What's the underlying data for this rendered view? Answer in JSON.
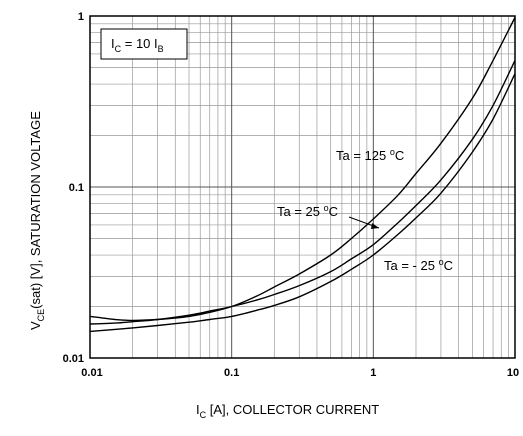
{
  "chart_data": {
    "type": "line",
    "title": "",
    "xlabel": {
      "main": "I",
      "sub": "C",
      "rest": " [A], COLLECTOR CURRENT"
    },
    "ylabel": {
      "main": "V",
      "sub": "CE",
      "rest": "(sat) [V], SATURATION VOLTAGE"
    },
    "x_scale": "log",
    "y_scale": "log",
    "xlim": [
      0.01,
      10
    ],
    "ylim": [
      0.01,
      1
    ],
    "grid": true,
    "x_ticks": [
      {
        "value": 0.01,
        "label": "0.01"
      },
      {
        "value": 0.1,
        "label": "0.1"
      },
      {
        "value": 1,
        "label": "1"
      },
      {
        "value": 10,
        "label": "10"
      }
    ],
    "y_ticks": [
      {
        "value": 0.01,
        "label": "0.01"
      },
      {
        "value": 0.1,
        "label": "0.1"
      },
      {
        "value": 1,
        "label": "1"
      }
    ],
    "condition_box": {
      "main": "I",
      "sub": "C",
      "mid": " = 10 I",
      "sub2": "B"
    },
    "series": [
      {
        "name": "Ta = 125 °C",
        "label_parts": {
          "pre": "Ta = 125 ",
          "sup": "o",
          "post": "C"
        },
        "x": [
          0.01,
          0.015,
          0.02,
          0.03,
          0.05,
          0.07,
          0.1,
          0.15,
          0.2,
          0.3,
          0.5,
          0.7,
          1,
          1.5,
          2,
          3,
          5,
          7,
          10
        ],
        "y": [
          0.0175,
          0.0168,
          0.0166,
          0.0168,
          0.0175,
          0.0185,
          0.02,
          0.023,
          0.026,
          0.031,
          0.04,
          0.05,
          0.065,
          0.09,
          0.12,
          0.18,
          0.33,
          0.55,
          0.98
        ]
      },
      {
        "name": "Ta = 25 °C",
        "label_parts": {
          "pre": "Ta = 25 ",
          "sup": "o",
          "post": "C"
        },
        "x": [
          0.01,
          0.015,
          0.02,
          0.03,
          0.05,
          0.07,
          0.1,
          0.15,
          0.2,
          0.3,
          0.5,
          0.7,
          1,
          1.5,
          2,
          3,
          5,
          7,
          10
        ],
        "y": [
          0.0158,
          0.016,
          0.0163,
          0.0168,
          0.0178,
          0.0188,
          0.02,
          0.0218,
          0.0235,
          0.0265,
          0.032,
          0.038,
          0.046,
          0.062,
          0.078,
          0.11,
          0.19,
          0.3,
          0.55
        ]
      },
      {
        "name": "Ta = - 25 °C",
        "label_parts": {
          "pre": "Ta = - 25 ",
          "sup": "o",
          "post": "C"
        },
        "x": [
          0.01,
          0.015,
          0.02,
          0.03,
          0.05,
          0.07,
          0.1,
          0.15,
          0.2,
          0.3,
          0.5,
          0.7,
          1,
          1.5,
          2,
          3,
          5,
          7,
          10
        ],
        "y": [
          0.0143,
          0.0147,
          0.015,
          0.0155,
          0.0162,
          0.0168,
          0.0175,
          0.019,
          0.0203,
          0.0228,
          0.028,
          0.033,
          0.04,
          0.053,
          0.066,
          0.092,
          0.16,
          0.25,
          0.46
        ]
      }
    ]
  }
}
